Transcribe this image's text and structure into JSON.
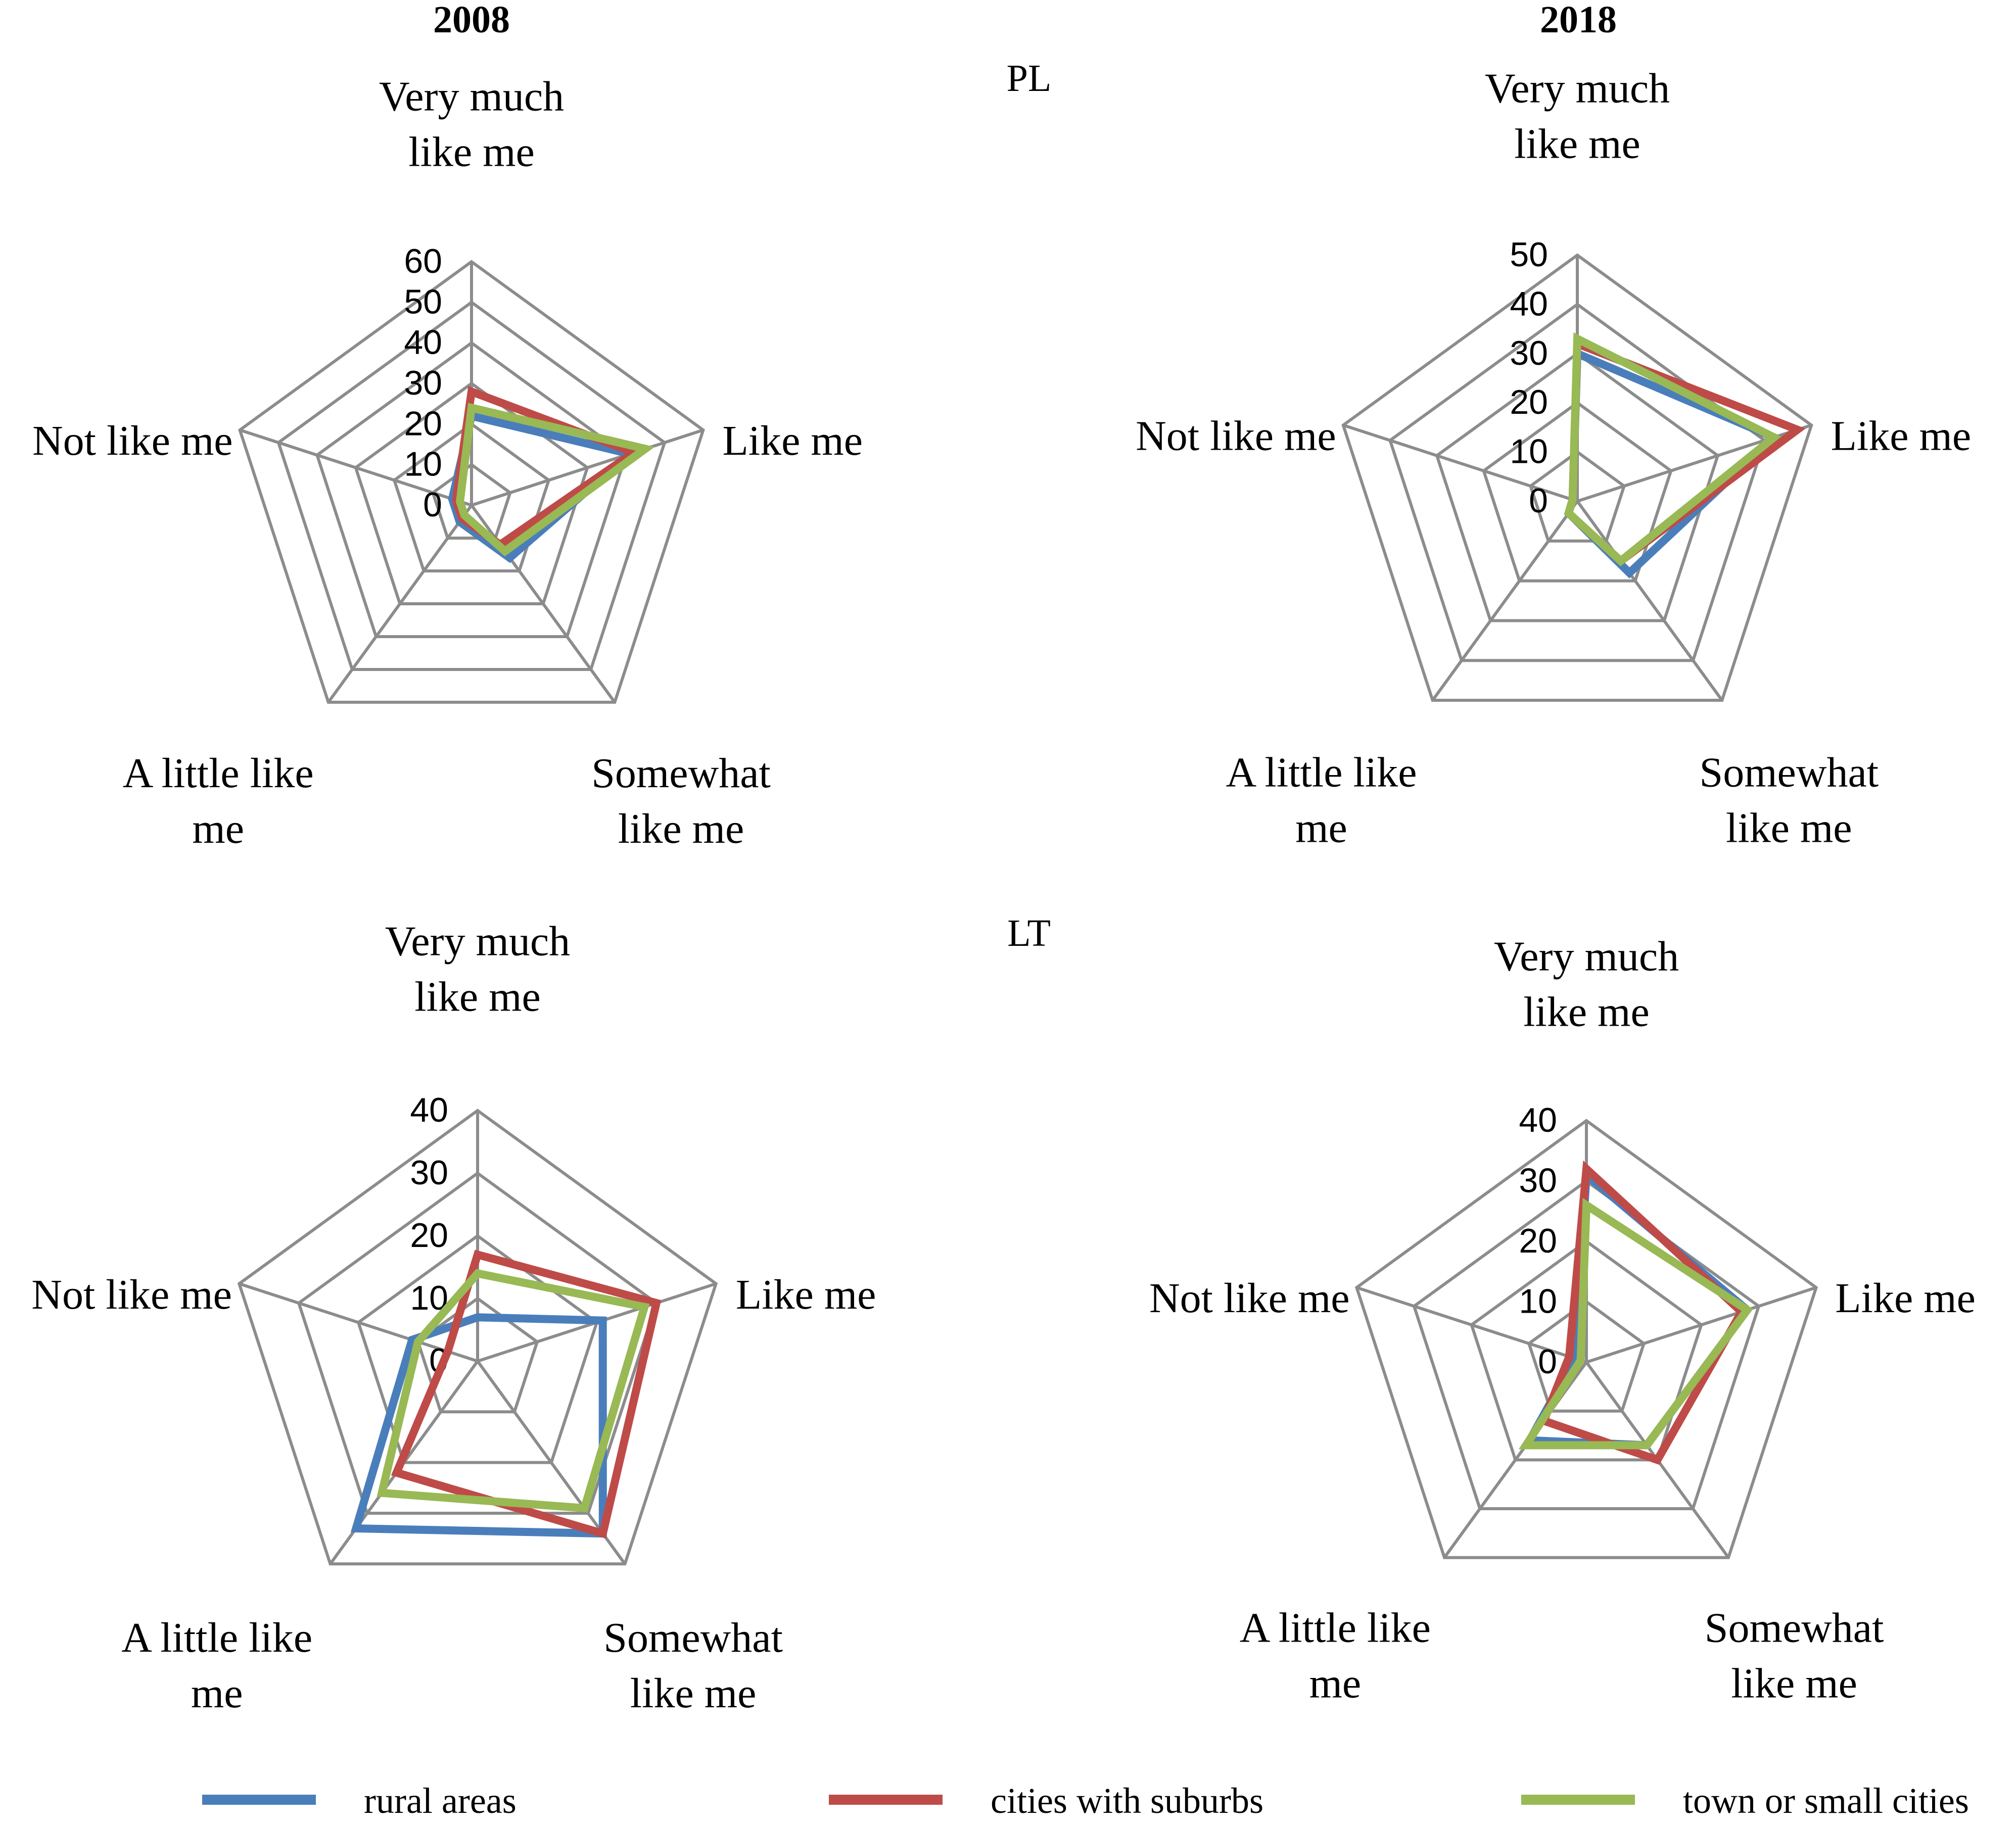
{
  "columns": [
    "2008",
    "2018"
  ],
  "rows": [
    "PL",
    "LT"
  ],
  "colors": {
    "rural areas": "#4a7ebb",
    "cities with suburbs": "#be4b48",
    "town or small cities": "#98b954",
    "grid": "#8c8c8c"
  },
  "legend": [
    {
      "label": "rural areas",
      "color": "#4a7ebb"
    },
    {
      "label": "cities with suburbs",
      "color": "#be4b48"
    },
    {
      "label": "town or small cities",
      "color": "#98b954"
    }
  ],
  "chart_data": [
    {
      "type": "radar",
      "country": "PL",
      "year": "2008",
      "categories": [
        "Very much like me",
        "Like me",
        "Somewhat like me",
        "A little like me",
        "Not like me"
      ],
      "category_lines": [
        [
          "Very much",
          "like me"
        ],
        [
          "Like me"
        ],
        [
          "Somewhat",
          "like me"
        ],
        [
          "A little like",
          "me"
        ],
        [
          "Not like me"
        ]
      ],
      "ticks": [
        "0",
        "10",
        "20",
        "30",
        "40",
        "50",
        "60"
      ],
      "rmax": 60,
      "series": [
        {
          "name": "rural areas",
          "values": [
            22,
            41,
            16,
            5,
            5
          ]
        },
        {
          "name": "cities with suburbs",
          "values": [
            28,
            42,
            12,
            4,
            4
          ]
        },
        {
          "name": "town or small cities",
          "values": [
            24,
            45,
            14,
            3,
            3
          ]
        }
      ]
    },
    {
      "type": "radar",
      "country": "PL",
      "year": "2018",
      "categories": [
        "Very much like me",
        "Like me",
        "Somewhat like me",
        "A little like me",
        "Not like me"
      ],
      "category_lines": [
        [
          "Very much",
          "like me"
        ],
        [
          "Like me"
        ],
        [
          "Somewhat",
          "like me"
        ],
        [
          "A little like",
          "me"
        ],
        [
          "Not like me"
        ]
      ],
      "ticks": [
        "0",
        "10",
        "20",
        "30",
        "40",
        "50"
      ],
      "rmax": 50,
      "series": [
        {
          "name": "rural areas",
          "values": [
            30,
            42,
            18,
            3,
            1
          ]
        },
        {
          "name": "cities with suburbs",
          "values": [
            32,
            47,
            15,
            3,
            1
          ]
        },
        {
          "name": "town or small cities",
          "values": [
            33,
            42,
            15,
            3,
            1
          ]
        }
      ]
    },
    {
      "type": "radar",
      "country": "LT",
      "year": "2008",
      "categories": [
        "Very much like me",
        "Like me",
        "Somewhat like me",
        "A little like me",
        "Not like me"
      ],
      "category_lines": [
        [
          "Very much",
          "like me"
        ],
        [
          "Like me"
        ],
        [
          "Somewhat",
          "like me"
        ],
        [
          "A little like",
          "me"
        ],
        [
          "Not like me"
        ]
      ],
      "ticks": [
        "0",
        "10",
        "20",
        "30",
        "40"
      ],
      "rmax": 40,
      "series": [
        {
          "name": "rural areas",
          "values": [
            7,
            21,
            34,
            33,
            11
          ]
        },
        {
          "name": "cities with suburbs",
          "values": [
            17,
            30,
            34,
            22,
            5
          ]
        },
        {
          "name": "town or small cities",
          "values": [
            14,
            28,
            29,
            26,
            10
          ]
        }
      ]
    },
    {
      "type": "radar",
      "country": "LT",
      "year": "2018",
      "categories": [
        "Very much like me",
        "Like me",
        "Somewhat like me",
        "A little like me",
        "Not like me"
      ],
      "category_lines": [
        [
          "Very much",
          "like me"
        ],
        [
          "Like me"
        ],
        [
          "Somewhat",
          "like me"
        ],
        [
          "A little like",
          "me"
        ],
        [
          "Not like me"
        ]
      ],
      "ticks": [
        "0",
        "10",
        "20",
        "30",
        "40"
      ],
      "rmax": 40,
      "series": [
        {
          "name": "rural areas",
          "values": [
            31,
            28,
            17,
            16,
            2
          ]
        },
        {
          "name": "cities with suburbs",
          "values": [
            32,
            27,
            20,
            12,
            3
          ]
        },
        {
          "name": "town or small cities",
          "values": [
            26,
            28,
            17,
            17,
            1
          ]
        }
      ]
    }
  ]
}
